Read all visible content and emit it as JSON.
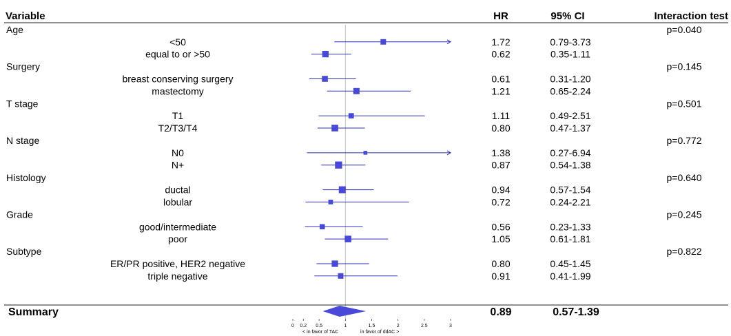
{
  "headers": {
    "variable": "Variable",
    "hr": "HR",
    "ci": "95% CI",
    "interaction": "Interaction test"
  },
  "summary": {
    "label": "Summary",
    "hr": "0.89",
    "ci": "0.57-1.39",
    "value": 0.89,
    "low": 0.57,
    "high": 1.39
  },
  "axis": {
    "ticks": [
      {
        "v": 0,
        "label": "0"
      },
      {
        "v": 0.2,
        "label": "0.2"
      },
      {
        "v": 0.5,
        "label": "0.5"
      },
      {
        "v": 1,
        "label": "1"
      },
      {
        "v": 1.5,
        "label": "1.5"
      },
      {
        "v": 2,
        "label": "2"
      },
      {
        "v": 2.5,
        "label": "2.5"
      },
      {
        "v": 3,
        "label": "3"
      }
    ],
    "favor_left": "< in favor of TAC",
    "favor_right": "in favor of ddAC >"
  },
  "chart_data": {
    "type": "forest",
    "xlim": [
      0,
      3
    ],
    "reference_line": 1,
    "groups": [
      {
        "name": "Age",
        "p": "p=0.040",
        "rows": [
          {
            "label": "<50",
            "hr": 1.72,
            "low": 0.79,
            "high": 3.73,
            "hr_text": "1.72",
            "ci_text": "0.79-3.73"
          },
          {
            "label": "equal to or >50",
            "hr": 0.62,
            "low": 0.35,
            "high": 1.11,
            "hr_text": "0.62",
            "ci_text": "0.35-1.11"
          }
        ]
      },
      {
        "name": "Surgery",
        "p": "p=0.145",
        "rows": [
          {
            "label": "breast conserving surgery",
            "hr": 0.61,
            "low": 0.31,
            "high": 1.2,
            "hr_text": "0.61",
            "ci_text": "0.31-1.20"
          },
          {
            "label": "mastectomy",
            "hr": 1.21,
            "low": 0.65,
            "high": 2.24,
            "hr_text": "1.21",
            "ci_text": "0.65-2.24"
          }
        ]
      },
      {
        "name": "T stage",
        "p": "p=0.501",
        "rows": [
          {
            "label": "T1",
            "hr": 1.11,
            "low": 0.49,
            "high": 2.51,
            "hr_text": "1.11",
            "ci_text": "0.49-2.51"
          },
          {
            "label": "T2/T3/T4",
            "hr": 0.8,
            "low": 0.47,
            "high": 1.37,
            "hr_text": "0.80",
            "ci_text": "0.47-1.37"
          }
        ]
      },
      {
        "name": "N stage",
        "p": "p=0.772",
        "rows": [
          {
            "label": "N0",
            "hr": 1.38,
            "low": 0.27,
            "high": 6.94,
            "hr_text": "1.38",
            "ci_text": "0.27-6.94"
          },
          {
            "label": "N+",
            "hr": 0.87,
            "low": 0.54,
            "high": 1.38,
            "hr_text": "0.87",
            "ci_text": "0.54-1.38"
          }
        ]
      },
      {
        "name": "Histology",
        "p": "p=0.640",
        "rows": [
          {
            "label": "ductal",
            "hr": 0.94,
            "low": 0.57,
            "high": 1.54,
            "hr_text": "0.94",
            "ci_text": "0.57-1.54"
          },
          {
            "label": "lobular",
            "hr": 0.72,
            "low": 0.24,
            "high": 2.21,
            "hr_text": "0.72",
            "ci_text": "0.24-2.21"
          }
        ]
      },
      {
        "name": "Grade",
        "p": "p=0.245",
        "rows": [
          {
            "label": "good/intermediate",
            "hr": 0.56,
            "low": 0.23,
            "high": 1.33,
            "hr_text": "0.56",
            "ci_text": "0.23-1.33"
          },
          {
            "label": "poor",
            "hr": 1.05,
            "low": 0.61,
            "high": 1.81,
            "hr_text": "1.05",
            "ci_text": "0.61-1.81"
          }
        ]
      },
      {
        "name": "Subtype",
        "p": "p=0.822",
        "rows": [
          {
            "label": "ER/PR positive, HER2 negative",
            "hr": 0.8,
            "low": 0.45,
            "high": 1.45,
            "hr_text": "0.80",
            "ci_text": "0.45-1.45"
          },
          {
            "label": "triple negative",
            "hr": 0.91,
            "low": 0.41,
            "high": 1.99,
            "hr_text": "0.91",
            "ci_text": "0.41-1.99"
          }
        ]
      }
    ]
  },
  "colors": {
    "marker": "#4949d9",
    "line": "#2b2bb8",
    "text": "#111111",
    "ref_line": "#b8c8b8"
  }
}
